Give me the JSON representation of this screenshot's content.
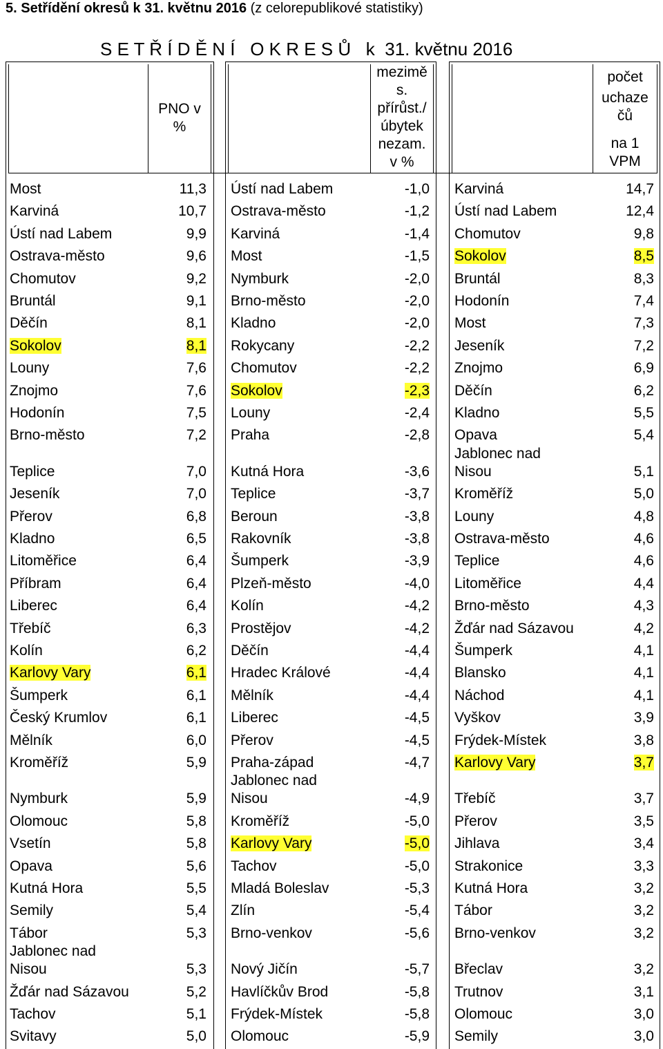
{
  "caption": {
    "bold": "5. Setřídění okresů k 31. květnu 2016",
    "rest": " (z celorepublikové statistiky)"
  },
  "title": "S E T Ř Í D Ě N Í   O K R E S Ů   k  31. květnu 2016",
  "headers": {
    "col1": [
      "PNO v",
      "%"
    ],
    "col2": [
      "meziměs.",
      "s.",
      "přírůst./",
      "úbytek",
      "nezam.",
      "v %"
    ],
    "col3": [
      "počet",
      "uchaze",
      "čů",
      "",
      "na 1",
      "VPM"
    ]
  },
  "rows": [
    {
      "d1": "Most",
      "v1": "11,3",
      "d2": "Ústí nad Labem",
      "v2": "-1,0",
      "d3": "Karviná",
      "v3": "14,7"
    },
    {
      "d1": "Karviná",
      "v1": "10,7",
      "d2": "Ostrava-město",
      "v2": "-1,2",
      "d3": "Ústí nad Labem",
      "v3": "12,4"
    },
    {
      "d1": "Ústí nad Labem",
      "v1": "9,9",
      "d2": "Karviná",
      "v2": "-1,4",
      "d3": "Chomutov",
      "v3": "9,8"
    },
    {
      "d1": "Ostrava-město",
      "v1": "9,6",
      "d2": "Most",
      "v2": "-1,5",
      "d3": "Sokolov",
      "v3": "8,5",
      "h3": true
    },
    {
      "d1": "Chomutov",
      "v1": "9,2",
      "d2": "Nymburk",
      "v2": "-2,0",
      "d3": "Bruntál",
      "v3": "8,3"
    },
    {
      "d1": "Bruntál",
      "v1": "9,1",
      "d2": "Brno-město",
      "v2": "-2,0",
      "d3": "Hodonín",
      "v3": "7,4"
    },
    {
      "d1": "Děčín",
      "v1": "8,1",
      "d2": "Kladno",
      "v2": "-2,0",
      "d3": "Most",
      "v3": "7,3"
    },
    {
      "d1": "Sokolov",
      "v1": "8,1",
      "h1": true,
      "d2": "Rokycany",
      "v2": "-2,2",
      "d3": "Jeseník",
      "v3": "7,2"
    },
    {
      "d1": "Louny",
      "v1": "7,6",
      "d2": "Chomutov",
      "v2": "-2,2",
      "d3": "Znojmo",
      "v3": "6,9"
    },
    {
      "d1": "Znojmo",
      "v1": "7,6",
      "d2": "Sokolov",
      "v2": "-2,3",
      "h2": true,
      "d3": "Děčín",
      "v3": "6,2"
    },
    {
      "d1": "Hodonín",
      "v1": "7,5",
      "d2": "Louny",
      "v2": "-2,4",
      "d3": "Kladno",
      "v3": "5,5"
    },
    {
      "d1": "Brno-město",
      "v1": "7,2",
      "d2": "Praha",
      "v2": "-2,8",
      "d3": "Opava",
      "v3": "5,4"
    },
    {
      "d1": "Teplice",
      "v1": "7,0",
      "d2": "Kutná Hora",
      "v2": "-3,6",
      "d3a": "Jablonec nad",
      "d3": "Nisou",
      "v3": "5,1",
      "tall": true
    },
    {
      "d1": "Jeseník",
      "v1": "7,0",
      "d2": "Teplice",
      "v2": "-3,7",
      "d3": "Kroměříž",
      "v3": "5,0"
    },
    {
      "d1": "Přerov",
      "v1": "6,8",
      "d2": "Beroun",
      "v2": "-3,8",
      "d3": "Louny",
      "v3": "4,8"
    },
    {
      "d1": "Kladno",
      "v1": "6,5",
      "d2": "Rakovník",
      "v2": "-3,8",
      "d3": "Ostrava-město",
      "v3": "4,6"
    },
    {
      "d1": "Litoměřice",
      "v1": "6,4",
      "d2": "Šumperk",
      "v2": "-3,9",
      "d3": "Teplice",
      "v3": "4,6"
    },
    {
      "d1": "Příbram",
      "v1": "6,4",
      "d2": "Plzeň-město",
      "v2": "-4,0",
      "d3": "Litoměřice",
      "v3": "4,4"
    },
    {
      "d1": "Liberec",
      "v1": "6,4",
      "d2": "Kolín",
      "v2": "-4,2",
      "d3": "Brno-město",
      "v3": "4,3"
    },
    {
      "d1": "Třebíč",
      "v1": "6,3",
      "d2": "Prostějov",
      "v2": "-4,2",
      "d3": "Žďár nad Sázavou",
      "v3": "4,2"
    },
    {
      "d1": "Kolín",
      "v1": "6,2",
      "d2": "Děčín",
      "v2": "-4,4",
      "d3": "Šumperk",
      "v3": "4,1"
    },
    {
      "d1": "Karlovy Vary",
      "v1": "6,1",
      "h1": true,
      "d2": "Hradec Králové",
      "v2": "-4,4",
      "d3": "Blansko",
      "v3": "4,1"
    },
    {
      "d1": "Šumperk",
      "v1": "6,1",
      "d2": "Mělník",
      "v2": "-4,4",
      "d3": "Náchod",
      "v3": "4,1"
    },
    {
      "d1": "Český Krumlov",
      "v1": "6,1",
      "d2": "Liberec",
      "v2": "-4,5",
      "d3": "Vyškov",
      "v3": "3,9"
    },
    {
      "d1": "Mělník",
      "v1": "6,0",
      "d2": "Přerov",
      "v2": "-4,5",
      "d3": "Frýdek-Místek",
      "v3": "3,8"
    },
    {
      "d1": "Kroměříž",
      "v1": "5,9",
      "d2": "Praha-západ",
      "v2": "-4,7",
      "d3": "Karlovy Vary",
      "v3": "3,7",
      "h3": true
    },
    {
      "d1": "Nymburk",
      "v1": "5,9",
      "d2a": "Jablonec nad",
      "d2": "Nisou",
      "v2": "-4,9",
      "d3": "Třebíč",
      "v3": "3,7",
      "tall": true
    },
    {
      "d1": "Olomouc",
      "v1": "5,8",
      "d2": "Kroměříž",
      "v2": "-5,0",
      "d3": "Přerov",
      "v3": "3,5"
    },
    {
      "d1": "Vsetín",
      "v1": "5,8",
      "d2": "Karlovy Vary",
      "v2": "-5,0",
      "h2": true,
      "d3": "Jihlava",
      "v3": "3,4"
    },
    {
      "d1": "Opava",
      "v1": "5,6",
      "d2": "Tachov",
      "v2": "-5,0",
      "d3": "Strakonice",
      "v3": "3,3"
    },
    {
      "d1": "Kutná Hora",
      "v1": "5,5",
      "d2": "Mladá Boleslav",
      "v2": "-5,3",
      "d3": "Kutná Hora",
      "v3": "3,2"
    },
    {
      "d1": "Semily",
      "v1": "5,4",
      "d2": "Zlín",
      "v2": "-5,4",
      "d3": "Tábor",
      "v3": "3,2"
    },
    {
      "d1": "Tábor",
      "v1": "5,3",
      "d2": "Brno-venkov",
      "v2": "-5,6",
      "d3": "Brno-venkov",
      "v3": "3,2"
    },
    {
      "d1a": "Jablonec nad",
      "d1": "Nisou",
      "v1": "5,3",
      "d2": "Nový Jičín",
      "v2": "-5,7",
      "d3": "Břeclav",
      "v3": "3,2",
      "tall": true
    },
    {
      "d1": "Žďár nad Sázavou",
      "v1": "5,2",
      "d2": "Havlíčkův Brod",
      "v2": "-5,8",
      "d3": "Trutnov",
      "v3": "3,1"
    },
    {
      "d1": "Tachov",
      "v1": "5,1",
      "d2": "Frýdek-Místek",
      "v2": "-5,8",
      "d3": "Olomouc",
      "v3": "3,0"
    },
    {
      "d1": "Svitavy",
      "v1": "5,0",
      "d2": "Olomouc",
      "v2": "-5,9",
      "d3": "Semily",
      "v3": "3,0"
    }
  ]
}
